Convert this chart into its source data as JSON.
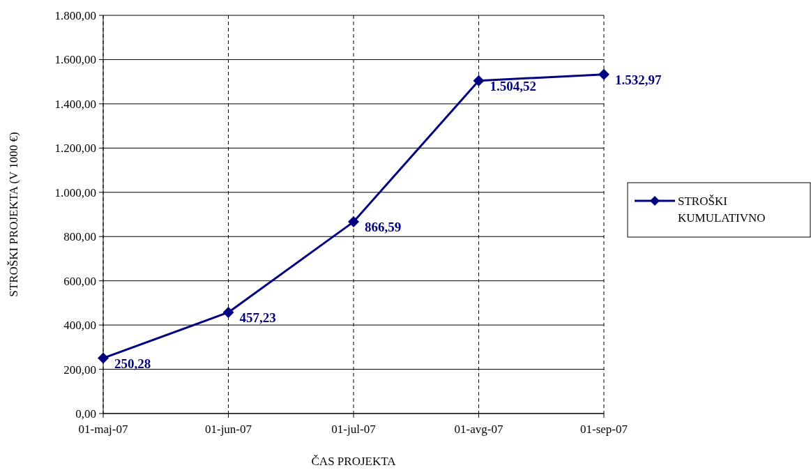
{
  "chart_data": {
    "type": "line",
    "xlabel": "ČAS PROJEKTA",
    "ylabel": "STROŠKI PROJEKTA (V 1000 €)",
    "categories": [
      "01-maj-07",
      "01-jun-07",
      "01-jul-07",
      "01-avg-07",
      "01-sep-07"
    ],
    "series": [
      {
        "name": "STROŠKI KUMULATIVNO",
        "color": "#000080",
        "values": [
          250.28,
          457.23,
          866.59,
          1504.52,
          1532.97
        ],
        "value_labels": [
          "250,28",
          "457,23",
          "866,59",
          "1.504,52",
          "1.532,97"
        ]
      }
    ],
    "ylim": [
      0,
      1800
    ],
    "yticks": [
      {
        "value": 0,
        "label": "0,00"
      },
      {
        "value": 200,
        "label": "200,00"
      },
      {
        "value": 400,
        "label": "400,00"
      },
      {
        "value": 600,
        "label": "600,00"
      },
      {
        "value": 800,
        "label": "800,00"
      },
      {
        "value": 1000,
        "label": "1.000,00"
      },
      {
        "value": 1200,
        "label": "1.200,00"
      },
      {
        "value": 1400,
        "label": "1.400,00"
      },
      {
        "value": 1600,
        "label": "1.600,00"
      },
      {
        "value": 1800,
        "label": "1.800,00"
      }
    ],
    "grid": true,
    "legend": "right",
    "marker": "diamond",
    "line_style": "solid"
  }
}
